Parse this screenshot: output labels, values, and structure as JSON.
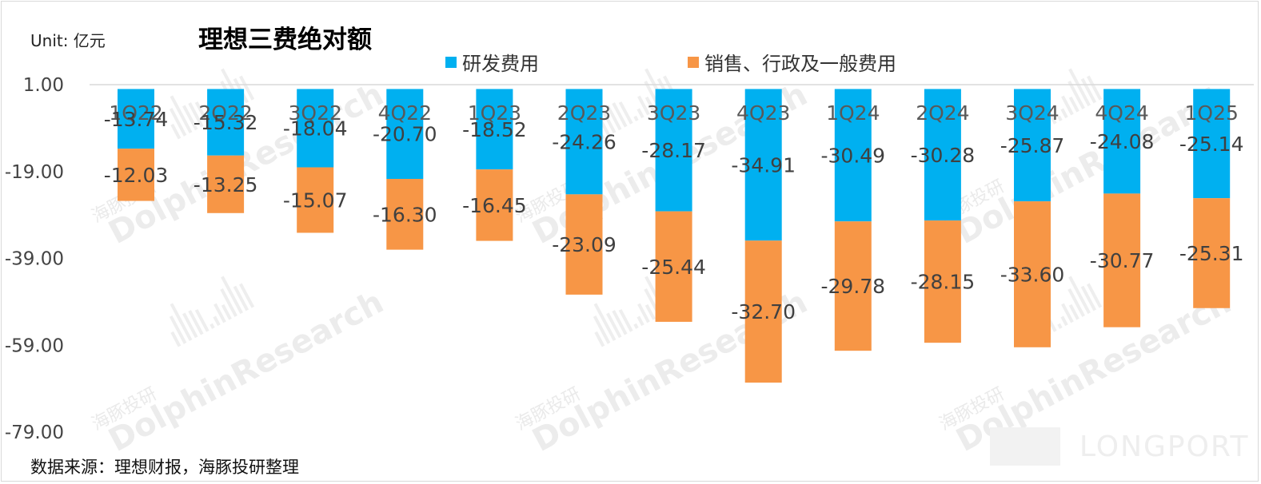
{
  "header": {
    "unit": "Unit: 亿元",
    "title": "理想三费绝对额"
  },
  "legend": [
    {
      "label": "研发费用",
      "color": "#00b0f0"
    },
    {
      "label": "销售、行政及一般费用",
      "color": "#f79646"
    }
  ],
  "footer": {
    "source": "数据来源：理想财报，海豚投研整理"
  },
  "watermark": {
    "en": "DolphinResearch",
    "cn": "海豚投研",
    "brand": "LONGPORT"
  },
  "chart_data": {
    "type": "bar",
    "stacked": true,
    "title": "理想三费绝对额",
    "ylabel": "Unit: 亿元",
    "ylim": [
      -79,
      1
    ],
    "yticks": [
      "1.00",
      "-19.00",
      "-39.00",
      "-59.00",
      "-79.00"
    ],
    "categories": [
      "1Q22",
      "2Q22",
      "3Q22",
      "4Q22",
      "1Q23",
      "2Q23",
      "3Q23",
      "4Q23",
      "1Q24",
      "2Q24",
      "3Q24",
      "4Q24",
      "1Q25"
    ],
    "series": [
      {
        "name": "研发费用",
        "color": "#00b0f0",
        "values": [
          -13.74,
          -15.32,
          -18.04,
          -20.7,
          -18.52,
          -24.26,
          -28.17,
          -34.91,
          -30.49,
          -30.28,
          -25.87,
          -24.08,
          -25.14
        ],
        "labels": [
          "-13.74",
          "-15.32",
          "-18.04",
          "-20.70",
          "-18.52",
          "-24.26",
          "-28.17",
          "-34.91",
          "-30.49",
          "-30.28",
          "-25.87",
          "-24.08",
          "-25.14"
        ]
      },
      {
        "name": "销售、行政及一般费用",
        "color": "#f79646",
        "values": [
          -12.03,
          -13.25,
          -15.07,
          -16.3,
          -16.45,
          -23.09,
          -25.44,
          -32.7,
          -29.78,
          -28.15,
          -33.6,
          -30.77,
          -25.31
        ],
        "labels": [
          "-12.03",
          "-13.25",
          "-15.07",
          "-16.30",
          "-16.45",
          "-23.09",
          "-25.44",
          "-32.70",
          "-29.78",
          "-28.15",
          "-33.60",
          "-30.77",
          "-25.31"
        ]
      }
    ],
    "grid": false,
    "legend_position": "top"
  }
}
